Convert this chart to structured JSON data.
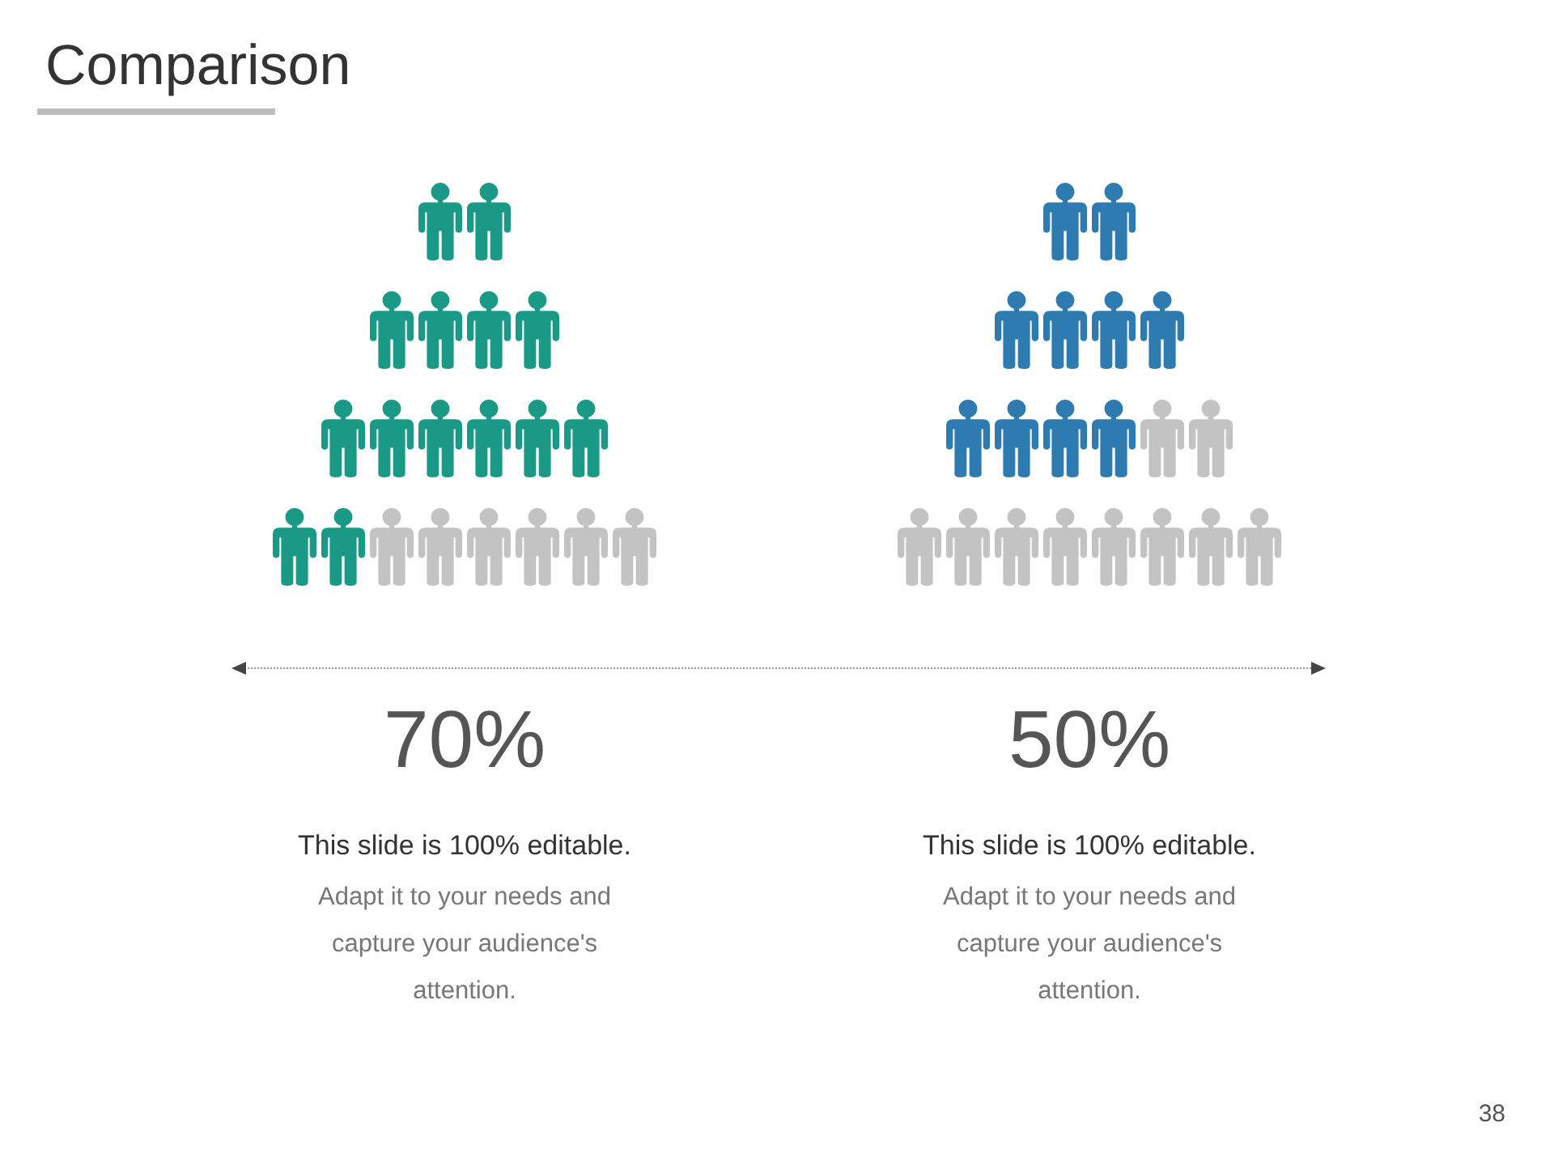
{
  "chart_data": {
    "type": "other",
    "title": "Comparison",
    "categories": [
      null,
      null
    ],
    "values": [
      70,
      50
    ],
    "colors": [
      "#1a9a86",
      "#2e7bb1"
    ],
    "value_labels": [
      "70%",
      "50%"
    ],
    "annotations": [
      "This slide is 100% editable.",
      "Adapt it to your needs and capture your audience's attention.",
      "This slide is 100% editable.",
      "Adapt it to your needs and capture your audience's attention.",
      "38"
    ]
  }
}
